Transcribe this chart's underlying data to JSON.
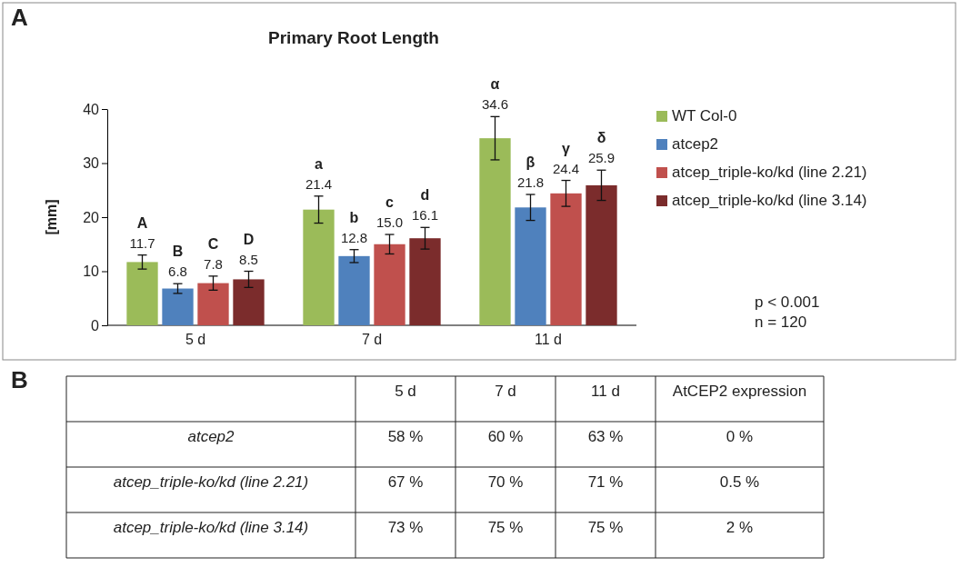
{
  "chart_data": [
    {
      "type": "bar",
      "title": "Primary Root Length",
      "ylabel": "[mm]",
      "categories": [
        "5 d",
        "7 d",
        "11 d"
      ],
      "series": [
        {
          "name": "WT Col-0",
          "color": "#9bbb59",
          "values": [
            11.7,
            21.4,
            34.6
          ],
          "errors": [
            1.3,
            2.5,
            4.0
          ],
          "value_labels": [
            "11.7",
            "21.4",
            "34.6"
          ]
        },
        {
          "name": "atcep2",
          "color": "#4f81bd",
          "values": [
            6.8,
            12.8,
            21.8
          ],
          "errors": [
            0.9,
            1.2,
            2.4
          ],
          "value_labels": [
            "6.8",
            "12.8",
            "21.8"
          ]
        },
        {
          "name": "atcep_triple-ko/kd (line 2.21)",
          "color": "#c0504d",
          "values": [
            7.8,
            15.0,
            24.4
          ],
          "errors": [
            1.3,
            1.8,
            2.4
          ],
          "value_labels": [
            "7.8",
            "15.0",
            "24.4"
          ]
        },
        {
          "name": "atcep_triple-ko/kd (line 3.14)",
          "color": "#7b2c2c",
          "values": [
            8.5,
            16.1,
            25.9
          ],
          "errors": [
            1.5,
            2.0,
            2.8
          ],
          "value_labels": [
            "8.5",
            "16.1",
            "25.9"
          ]
        }
      ],
      "ylim": [
        0,
        40
      ],
      "yticks": [
        0,
        10,
        20,
        30,
        40
      ],
      "legend": "right",
      "annotations": [
        "A",
        "A",
        "B",
        "C",
        "D",
        "a",
        "b",
        "c",
        "d",
        "α",
        "β",
        "γ",
        "δ",
        "p < 0.001",
        "n = 120"
      ]
    },
    {
      "type": "other",
      "categories": [
        "5 d",
        "7 d",
        "11 d",
        "AtCEP2 expression"
      ],
      "y_categories": [
        "atcep2",
        "atcep_triple-ko/kd (line 2.21)",
        "atcep_triple-ko/kd (line 3.14)"
      ],
      "annotations": [
        "B",
        "58 %",
        "60 %",
        "63 %",
        "0 %",
        "67 %",
        "70 %",
        "71 %",
        "0.5 %",
        "73 %",
        "75 %",
        "75 %",
        "2 %"
      ]
    }
  ]
}
